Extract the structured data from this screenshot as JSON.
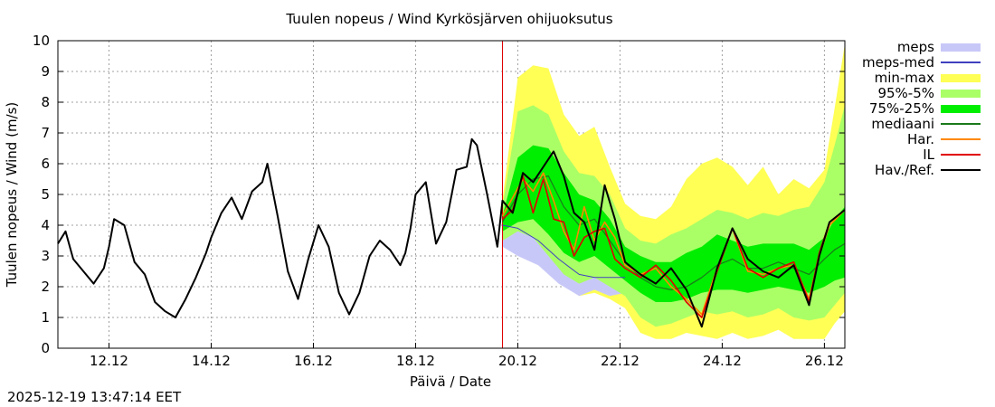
{
  "chart_data": {
    "type": "line",
    "title": "Tuulen nopeus / Wind  Kyrkösjärven ohijuoksutus",
    "xlabel": "Päivä / Date",
    "ylabel": "Tuulen nopeus / Wind (m/s)",
    "x_unit": "days since 2025-12-11 00:00",
    "xlim": [
      0,
      15.4
    ],
    "ylim": [
      0,
      10
    ],
    "yticks": [
      "0",
      "1",
      "2",
      "3",
      "4",
      "5",
      "6",
      "7",
      "8",
      "9",
      "10"
    ],
    "xticks": [
      {
        "x": 1,
        "label": "12.12"
      },
      {
        "x": 3,
        "label": "14.12"
      },
      {
        "x": 5,
        "label": "16.12"
      },
      {
        "x": 7,
        "label": "18.12"
      },
      {
        "x": 9,
        "label": "20.12"
      },
      {
        "x": 11,
        "label": "22.12"
      },
      {
        "x": 13,
        "label": "24.12"
      },
      {
        "x": 15,
        "label": "26.12"
      }
    ],
    "grid": true,
    "now_x": 8.7,
    "legend_position": "right",
    "legend": [
      {
        "label": "meps",
        "color": "#c8c8f8",
        "kind": "band"
      },
      {
        "label": "meps-med",
        "color": "#4040c0",
        "kind": "line"
      },
      {
        "label": "min-max",
        "color": "#ffff55",
        "kind": "band"
      },
      {
        "label": "95%-5%",
        "color": "#aaff66",
        "kind": "band"
      },
      {
        "label": "75%-25%",
        "color": "#00ee00",
        "kind": "band"
      },
      {
        "label": "mediaani",
        "color": "#1a7a1a",
        "kind": "line"
      },
      {
        "label": "Har.",
        "color": "#ff8800",
        "kind": "line"
      },
      {
        "label": "IL",
        "color": "#e00000",
        "kind": "line"
      },
      {
        "label": "Hav./Ref.",
        "color": "#000000",
        "kind": "line"
      }
    ],
    "bands": {
      "meps": {
        "x": [
          8.7,
          9.0,
          9.4,
          9.8,
          10.2,
          10.5,
          10.8,
          11.1
        ],
        "lo": [
          3.3,
          3.0,
          2.7,
          2.1,
          1.7,
          1.9,
          1.7,
          1.8
        ],
        "hi": [
          4.4,
          4.6,
          4.2,
          3.6,
          3.2,
          3.0,
          2.9,
          2.8
        ]
      },
      "minmax": {
        "x": [
          8.7,
          9.0,
          9.3,
          9.6,
          9.9,
          10.2,
          10.5,
          10.8,
          11.1,
          11.4,
          11.7,
          12.0,
          12.3,
          12.6,
          12.9,
          13.2,
          13.5,
          13.8,
          14.1,
          14.4,
          14.7,
          15.0,
          15.2,
          15.4
        ],
        "lo": [
          3.3,
          3.5,
          3.3,
          2.7,
          2.1,
          1.7,
          1.8,
          1.6,
          1.3,
          0.5,
          0.3,
          0.3,
          0.5,
          0.4,
          0.3,
          0.5,
          0.3,
          0.4,
          0.6,
          0.3,
          0.3,
          0.3,
          0.8,
          1.2
        ],
        "hi": [
          4.8,
          8.8,
          9.2,
          9.1,
          7.6,
          6.9,
          7.2,
          5.9,
          4.7,
          4.3,
          4.2,
          4.6,
          5.5,
          6.0,
          6.2,
          5.9,
          5.3,
          5.9,
          5.0,
          5.5,
          5.2,
          5.8,
          7.8,
          9.9
        ]
      },
      "p95_5": {
        "x": [
          8.7,
          9.0,
          9.3,
          9.6,
          9.9,
          10.2,
          10.5,
          10.8,
          11.1,
          11.4,
          11.7,
          12.0,
          12.3,
          12.6,
          12.9,
          13.2,
          13.5,
          13.8,
          14.1,
          14.4,
          14.7,
          15.0,
          15.2,
          15.4
        ],
        "lo": [
          3.5,
          3.8,
          3.6,
          3.0,
          2.4,
          2.1,
          2.3,
          2.0,
          1.7,
          1.0,
          0.7,
          0.8,
          1.0,
          1.2,
          1.1,
          1.2,
          1.0,
          1.1,
          1.3,
          1.0,
          0.9,
          1.0,
          1.4,
          1.8
        ],
        "hi": [
          4.6,
          7.7,
          7.9,
          7.6,
          6.4,
          5.7,
          5.6,
          5.0,
          3.9,
          3.5,
          3.4,
          3.7,
          3.9,
          4.2,
          4.5,
          4.4,
          4.2,
          4.4,
          4.3,
          4.5,
          4.6,
          5.4,
          6.6,
          7.9
        ]
      },
      "p75_25": {
        "x": [
          8.7,
          9.0,
          9.3,
          9.6,
          9.9,
          10.2,
          10.5,
          10.8,
          11.1,
          11.4,
          11.7,
          12.0,
          12.3,
          12.6,
          12.9,
          13.2,
          13.5,
          13.8,
          14.1,
          14.4,
          14.7,
          15.0,
          15.2,
          15.4
        ],
        "lo": [
          3.8,
          4.1,
          4.2,
          3.7,
          3.1,
          2.8,
          3.0,
          2.6,
          2.2,
          1.8,
          1.5,
          1.5,
          1.6,
          1.8,
          1.9,
          1.9,
          1.8,
          1.9,
          2.0,
          1.9,
          1.8,
          2.0,
          2.2,
          2.3
        ],
        "hi": [
          4.3,
          6.2,
          6.6,
          6.5,
          5.7,
          5.0,
          4.8,
          4.2,
          3.3,
          3.0,
          2.8,
          2.8,
          3.1,
          3.3,
          3.7,
          3.5,
          3.3,
          3.4,
          3.4,
          3.4,
          3.2,
          3.6,
          4.2,
          4.6
        ]
      }
    },
    "series": [
      {
        "name": "meps-med",
        "x": [
          8.7,
          9.0,
          9.4,
          9.8,
          10.2,
          10.5,
          10.8,
          11.1
        ],
        "y": [
          4.0,
          3.9,
          3.5,
          2.9,
          2.4,
          2.3,
          2.3,
          2.3
        ]
      },
      {
        "name": "mediaani",
        "x": [
          8.7,
          9.0,
          9.3,
          9.6,
          9.9,
          10.2,
          10.5,
          10.8,
          11.1,
          11.4,
          11.7,
          12.0,
          12.3,
          12.6,
          12.9,
          13.2,
          13.5,
          13.8,
          14.1,
          14.4,
          14.7,
          15.0,
          15.2,
          15.4
        ],
        "y": [
          4.1,
          5.0,
          5.5,
          5.6,
          4.6,
          4.0,
          4.2,
          3.5,
          2.8,
          2.3,
          2.0,
          1.9,
          2.0,
          2.3,
          2.7,
          2.9,
          2.6,
          2.6,
          2.8,
          2.6,
          2.4,
          2.9,
          3.2,
          3.4
        ]
      },
      {
        "name": "Har.",
        "x": [
          8.7,
          8.9,
          9.1,
          9.3,
          9.5,
          9.7,
          9.9,
          10.1,
          10.3,
          10.5,
          10.7,
          10.9,
          11.1,
          11.4,
          11.7,
          12.0,
          12.3,
          12.6,
          12.9,
          13.2,
          13.5,
          13.8,
          14.1,
          14.4,
          14.7,
          14.9,
          15.1,
          15.4
        ],
        "y": [
          4.3,
          4.9,
          5.5,
          5.1,
          5.7,
          4.8,
          3.8,
          3.2,
          4.6,
          3.5,
          4.1,
          3.6,
          2.7,
          2.4,
          2.6,
          2.0,
          1.6,
          1.1,
          2.6,
          3.9,
          2.5,
          2.4,
          2.6,
          2.7,
          1.6,
          3.0,
          4.0,
          4.5
        ]
      },
      {
        "name": "IL",
        "x": [
          8.7,
          8.9,
          9.1,
          9.3,
          9.5,
          9.7,
          9.9,
          10.1,
          10.3,
          10.5,
          10.7,
          10.9,
          11.1,
          11.4,
          11.7,
          12.0,
          12.3,
          12.6,
          12.9,
          13.2,
          13.5,
          13.8,
          14.1,
          14.4,
          14.7,
          14.9,
          15.1,
          15.4
        ],
        "y": [
          4.2,
          4.5,
          5.6,
          4.4,
          5.5,
          4.2,
          4.1,
          3.0,
          3.6,
          3.8,
          3.9,
          2.9,
          2.6,
          2.3,
          2.7,
          2.2,
          1.5,
          1.0,
          2.5,
          3.9,
          2.6,
          2.3,
          2.6,
          2.8,
          1.5,
          3.1,
          4.1,
          4.5
        ]
      },
      {
        "name": "Hav./Ref.",
        "x": [
          0.0,
          0.15,
          0.3,
          0.5,
          0.7,
          0.9,
          1.0,
          1.1,
          1.3,
          1.5,
          1.7,
          1.9,
          2.1,
          2.3,
          2.5,
          2.7,
          2.9,
          3.0,
          3.2,
          3.4,
          3.6,
          3.8,
          4.0,
          4.1,
          4.3,
          4.5,
          4.7,
          4.9,
          5.1,
          5.3,
          5.5,
          5.7,
          5.9,
          6.1,
          6.3,
          6.5,
          6.7,
          6.8,
          6.9,
          7.0,
          7.2,
          7.4,
          7.6,
          7.8,
          8.0,
          8.1,
          8.2,
          8.4,
          8.6,
          8.7,
          8.9,
          9.1,
          9.3,
          9.5,
          9.7,
          9.9,
          10.1,
          10.3,
          10.5,
          10.7,
          10.9,
          11.1,
          11.4,
          11.7,
          12.0,
          12.3,
          12.6,
          12.9,
          13.2,
          13.5,
          13.8,
          14.1,
          14.4,
          14.7,
          14.9,
          15.1,
          15.4
        ],
        "y": [
          3.4,
          3.8,
          2.9,
          2.5,
          2.1,
          2.6,
          3.3,
          4.2,
          4.0,
          2.8,
          2.4,
          1.5,
          1.2,
          1.0,
          1.6,
          2.3,
          3.1,
          3.6,
          4.4,
          4.9,
          4.2,
          5.1,
          5.4,
          6.0,
          4.3,
          2.5,
          1.6,
          2.9,
          4.0,
          3.3,
          1.8,
          1.1,
          1.8,
          3.0,
          3.5,
          3.2,
          2.7,
          3.1,
          3.9,
          5.0,
          5.4,
          3.4,
          4.1,
          5.8,
          5.9,
          6.8,
          6.6,
          5.0,
          3.3,
          4.8,
          4.4,
          5.7,
          5.4,
          5.9,
          6.4,
          5.6,
          4.4,
          4.1,
          3.2,
          5.3,
          4.2,
          2.8,
          2.4,
          2.1,
          2.6,
          1.9,
          0.7,
          2.6,
          3.9,
          2.9,
          2.5,
          2.3,
          2.7,
          1.4,
          3.0,
          4.1,
          4.5
        ]
      }
    ]
  },
  "timestamp": "2025-12-19 13:47:14 EET"
}
